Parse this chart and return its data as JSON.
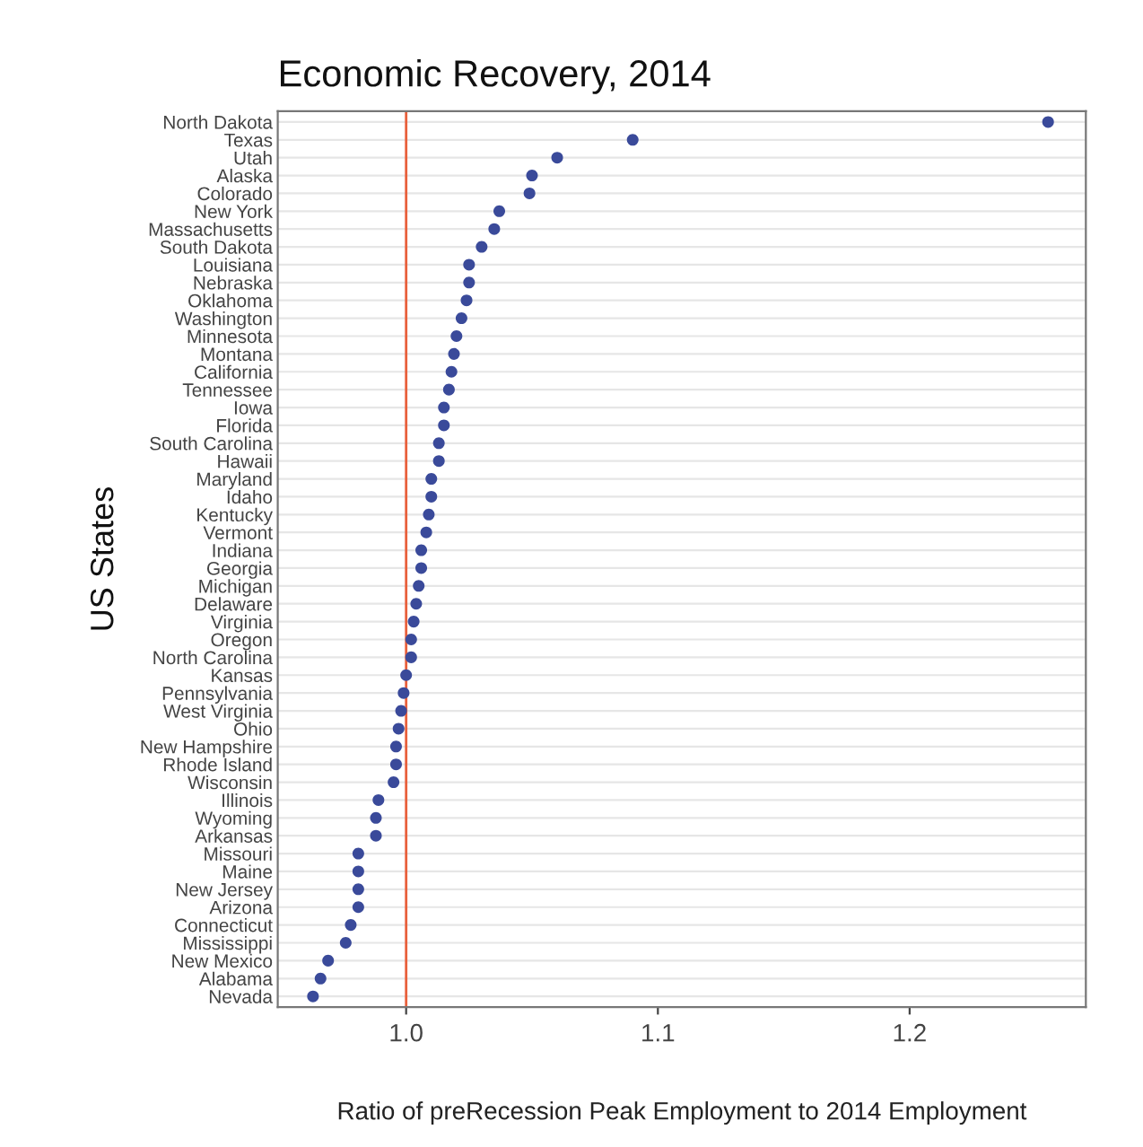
{
  "chart_data": {
    "type": "scatter",
    "title": "Economic Recovery, 2014",
    "xlabel": "Ratio of preRecession Peak Employment to 2014 Employment",
    "ylabel": "US States",
    "orientation": "horizontal",
    "categories": [
      "North Dakota",
      "Texas",
      "Utah",
      "Alaska",
      "Colorado",
      "New York",
      "Massachusetts",
      "South Dakota",
      "Louisiana",
      "Nebraska",
      "Oklahoma",
      "Washington",
      "Minnesota",
      "Montana",
      "California",
      "Tennessee",
      "Iowa",
      "Florida",
      "South Carolina",
      "Hawaii",
      "Maryland",
      "Idaho",
      "Kentucky",
      "Vermont",
      "Indiana",
      "Georgia",
      "Michigan",
      "Delaware",
      "Virginia",
      "Oregon",
      "North Carolina",
      "Kansas",
      "Pennsylvania",
      "West Virginia",
      "Ohio",
      "New Hampshire",
      "Rhode Island",
      "Wisconsin",
      "Illinois",
      "Wyoming",
      "Arkansas",
      "Missouri",
      "Maine",
      "New Jersey",
      "Arizona",
      "Connecticut",
      "Mississippi",
      "New Mexico",
      "Alabama",
      "Nevada"
    ],
    "series": [
      {
        "color": "#3a4a9a",
        "values": [
          1.255,
          1.09,
          1.06,
          1.05,
          1.049,
          1.037,
          1.035,
          1.03,
          1.025,
          1.025,
          1.024,
          1.022,
          1.02,
          1.019,
          1.018,
          1.017,
          1.015,
          1.015,
          1.013,
          1.013,
          1.01,
          1.01,
          1.009,
          1.008,
          1.006,
          1.006,
          1.005,
          1.004,
          1.003,
          1.002,
          1.002,
          1.0,
          0.999,
          0.998,
          0.997,
          0.996,
          0.996,
          0.995,
          0.989,
          0.988,
          0.988,
          0.981,
          0.981,
          0.981,
          0.981,
          0.978,
          0.976,
          0.969,
          0.966,
          0.963
        ]
      }
    ],
    "xlim": [
      0.949,
      1.27
    ],
    "xticks": [
      {
        "value": 1.0,
        "label": "1.0"
      },
      {
        "value": 1.1,
        "label": "1.1"
      },
      {
        "value": 1.2,
        "label": "1.2"
      }
    ],
    "ref_lines": [
      {
        "axis": "x",
        "value": 1.0,
        "color": "#e8603c"
      }
    ],
    "grid": "y",
    "marker": "circle",
    "legend": false
  }
}
